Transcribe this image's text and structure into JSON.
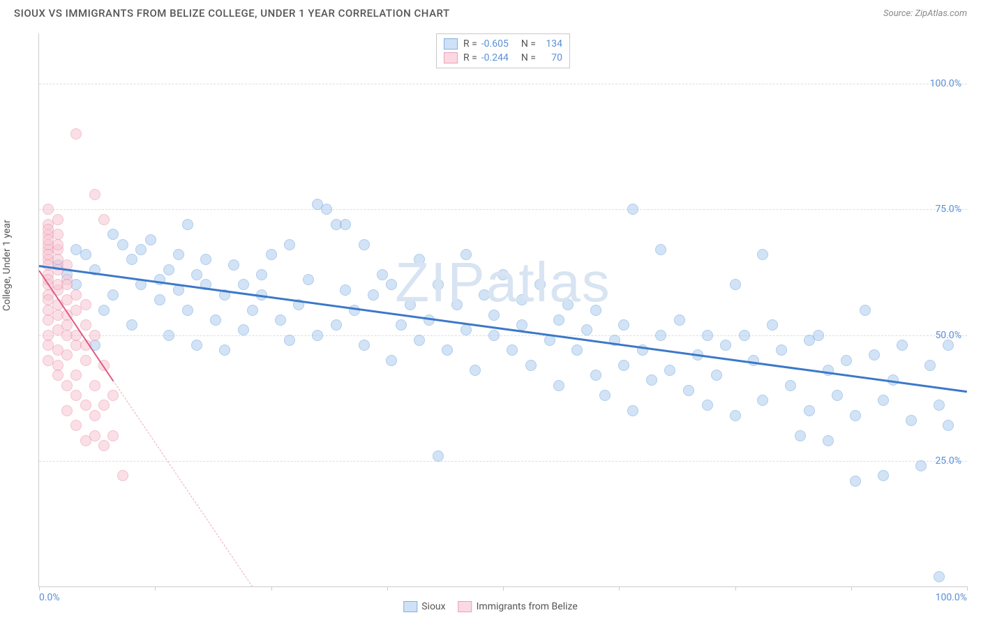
{
  "header": {
    "title": "SIOUX VS IMMIGRANTS FROM BELIZE COLLEGE, UNDER 1 YEAR CORRELATION CHART",
    "source_prefix": "Source: ",
    "source_name": "ZipAtlas.com"
  },
  "chart": {
    "type": "scatter",
    "y_axis_label": "College, Under 1 year",
    "watermark": "ZIPatlas",
    "background_color": "#ffffff",
    "grid_color": "#dddddd",
    "axis_color": "#cccccc",
    "xlim": [
      0,
      100
    ],
    "ylim": [
      0,
      110
    ],
    "yticks": [
      {
        "v": 25,
        "label": "25.0%"
      },
      {
        "v": 50,
        "label": "50.0%"
      },
      {
        "v": 75,
        "label": "75.0%"
      },
      {
        "v": 100,
        "label": "100.0%"
      }
    ],
    "xtick_label_min": "0.0%",
    "xtick_label_max": "100.0%",
    "xtick_positions": [
      0,
      12.5,
      25,
      37.5,
      50,
      62.5,
      75,
      87.5,
      100
    ],
    "ytick_color": "#5b8fd6",
    "marker_radius": 8,
    "marker_opacity": 0.55,
    "series": [
      {
        "name": "Sioux",
        "fill": "#aecdef",
        "stroke": "#6ea3de",
        "swatch_fill": "#cfe1f6",
        "swatch_border": "#7fb0e2",
        "R": "-0.605",
        "N": "134",
        "trend": {
          "x1": 0,
          "y1": 64,
          "x2": 100,
          "y2": 39,
          "color": "#3b78c9",
          "width": 3,
          "dash": false
        },
        "points": [
          [
            2,
            64
          ],
          [
            3,
            62
          ],
          [
            4,
            60
          ],
          [
            4,
            67
          ],
          [
            5,
            66
          ],
          [
            6,
            48
          ],
          [
            6,
            63
          ],
          [
            7,
            55
          ],
          [
            8,
            70
          ],
          [
            8,
            58
          ],
          [
            9,
            68
          ],
          [
            10,
            65
          ],
          [
            10,
            52
          ],
          [
            11,
            60
          ],
          [
            11,
            67
          ],
          [
            12,
            69
          ],
          [
            13,
            61
          ],
          [
            13,
            57
          ],
          [
            14,
            63
          ],
          [
            14,
            50
          ],
          [
            15,
            59
          ],
          [
            15,
            66
          ],
          [
            16,
            55
          ],
          [
            16,
            72
          ],
          [
            17,
            62
          ],
          [
            17,
            48
          ],
          [
            18,
            60
          ],
          [
            18,
            65
          ],
          [
            19,
            53
          ],
          [
            20,
            58
          ],
          [
            20,
            47
          ],
          [
            21,
            64
          ],
          [
            22,
            51
          ],
          [
            22,
            60
          ],
          [
            23,
            55
          ],
          [
            24,
            58
          ],
          [
            24,
            62
          ],
          [
            25,
            66
          ],
          [
            26,
            53
          ],
          [
            27,
            49
          ],
          [
            27,
            68
          ],
          [
            28,
            56
          ],
          [
            29,
            61
          ],
          [
            30,
            50
          ],
          [
            30,
            76
          ],
          [
            31,
            75
          ],
          [
            32,
            52
          ],
          [
            32,
            72
          ],
          [
            33,
            72
          ],
          [
            33,
            59
          ],
          [
            34,
            55
          ],
          [
            35,
            68
          ],
          [
            35,
            48
          ],
          [
            36,
            58
          ],
          [
            37,
            62
          ],
          [
            38,
            45
          ],
          [
            38,
            60
          ],
          [
            39,
            52
          ],
          [
            40,
            56
          ],
          [
            41,
            49
          ],
          [
            41,
            65
          ],
          [
            42,
            53
          ],
          [
            43,
            26
          ],
          [
            43,
            60
          ],
          [
            44,
            47
          ],
          [
            45,
            56
          ],
          [
            46,
            51
          ],
          [
            46,
            66
          ],
          [
            47,
            43
          ],
          [
            48,
            58
          ],
          [
            49,
            50
          ],
          [
            49,
            54
          ],
          [
            50,
            62
          ],
          [
            51,
            47
          ],
          [
            52,
            52
          ],
          [
            52,
            57
          ],
          [
            53,
            44
          ],
          [
            54,
            60
          ],
          [
            55,
            49
          ],
          [
            56,
            53
          ],
          [
            56,
            40
          ],
          [
            57,
            56
          ],
          [
            58,
            47
          ],
          [
            59,
            51
          ],
          [
            60,
            42
          ],
          [
            60,
            55
          ],
          [
            61,
            38
          ],
          [
            62,
            49
          ],
          [
            63,
            44
          ],
          [
            63,
            52
          ],
          [
            64,
            35
          ],
          [
            64,
            75
          ],
          [
            65,
            47
          ],
          [
            66,
            41
          ],
          [
            67,
            67
          ],
          [
            67,
            50
          ],
          [
            68,
            43
          ],
          [
            69,
            53
          ],
          [
            70,
            39
          ],
          [
            71,
            46
          ],
          [
            72,
            36
          ],
          [
            72,
            50
          ],
          [
            73,
            42
          ],
          [
            74,
            48
          ],
          [
            75,
            60
          ],
          [
            75,
            34
          ],
          [
            76,
            50
          ],
          [
            77,
            45
          ],
          [
            78,
            66
          ],
          [
            78,
            37
          ],
          [
            79,
            52
          ],
          [
            80,
            47
          ],
          [
            81,
            40
          ],
          [
            82,
            30
          ],
          [
            83,
            49
          ],
          [
            83,
            35
          ],
          [
            84,
            50
          ],
          [
            85,
            43
          ],
          [
            85,
            29
          ],
          [
            86,
            38
          ],
          [
            87,
            45
          ],
          [
            88,
            21
          ],
          [
            88,
            34
          ],
          [
            89,
            55
          ],
          [
            90,
            46
          ],
          [
            91,
            37
          ],
          [
            91,
            22
          ],
          [
            92,
            41
          ],
          [
            93,
            48
          ],
          [
            94,
            33
          ],
          [
            95,
            24
          ],
          [
            96,
            44
          ],
          [
            97,
            36
          ],
          [
            97,
            2
          ],
          [
            98,
            48
          ],
          [
            98,
            32
          ]
        ]
      },
      {
        "name": "Immigrants from Belize",
        "fill": "#f7c6d3",
        "stroke": "#e88fa8",
        "swatch_fill": "#fbd9e3",
        "swatch_border": "#ed9eb5",
        "R": "-0.244",
        "N": "70",
        "trend": {
          "x1": 0,
          "y1": 63,
          "x2": 8,
          "y2": 41,
          "color": "#e05a82",
          "width": 2.5,
          "dash": false
        },
        "trend_ext": {
          "x1": 8,
          "y1": 41,
          "x2": 23,
          "y2": 0,
          "color": "#f2a8bd",
          "width": 1,
          "dash": true
        },
        "points": [
          [
            1,
            62
          ],
          [
            1,
            65
          ],
          [
            1,
            58
          ],
          [
            1,
            70
          ],
          [
            1,
            55
          ],
          [
            1,
            67
          ],
          [
            1,
            72
          ],
          [
            1,
            60
          ],
          [
            1,
            50
          ],
          [
            1,
            75
          ],
          [
            1,
            68
          ],
          [
            1,
            45
          ],
          [
            1,
            64
          ],
          [
            1,
            57
          ],
          [
            1,
            71
          ],
          [
            1,
            53
          ],
          [
            1,
            66
          ],
          [
            1,
            48
          ],
          [
            1,
            69
          ],
          [
            1,
            61
          ],
          [
            2,
            73
          ],
          [
            2,
            63
          ],
          [
            2,
            56
          ],
          [
            2,
            70
          ],
          [
            2,
            59
          ],
          [
            2,
            51
          ],
          [
            2,
            67
          ],
          [
            2,
            44
          ],
          [
            2,
            65
          ],
          [
            2,
            60
          ],
          [
            2,
            54
          ],
          [
            2,
            47
          ],
          [
            2,
            68
          ],
          [
            2,
            42
          ],
          [
            3,
            61
          ],
          [
            3,
            50
          ],
          [
            3,
            57
          ],
          [
            3,
            64
          ],
          [
            3,
            40
          ],
          [
            3,
            54
          ],
          [
            3,
            46
          ],
          [
            3,
            60
          ],
          [
            3,
            35
          ],
          [
            3,
            52
          ],
          [
            4,
            48
          ],
          [
            4,
            55
          ],
          [
            4,
            90
          ],
          [
            4,
            42
          ],
          [
            4,
            58
          ],
          [
            4,
            38
          ],
          [
            4,
            32
          ],
          [
            4,
            50
          ],
          [
            5,
            45
          ],
          [
            5,
            52
          ],
          [
            5,
            36
          ],
          [
            5,
            29
          ],
          [
            5,
            56
          ],
          [
            5,
            48
          ],
          [
            6,
            40
          ],
          [
            6,
            78
          ],
          [
            6,
            30
          ],
          [
            6,
            50
          ],
          [
            6,
            34
          ],
          [
            7,
            73
          ],
          [
            7,
            28
          ],
          [
            7,
            44
          ],
          [
            7,
            36
          ],
          [
            8,
            30
          ],
          [
            8,
            38
          ],
          [
            9,
            22
          ]
        ]
      }
    ]
  },
  "legend_bottom": {
    "label_a": "Sioux",
    "label_b": "Immigrants from Belize"
  }
}
